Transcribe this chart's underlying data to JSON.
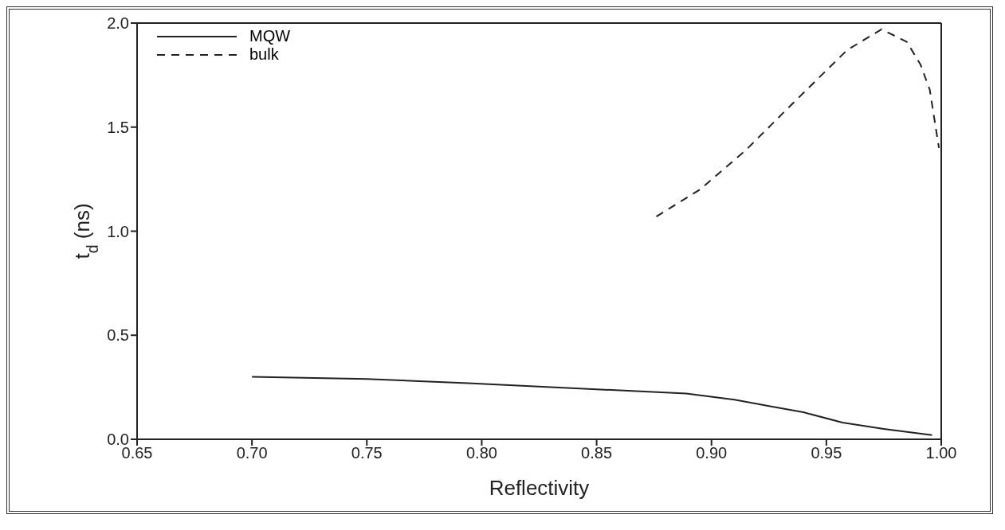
{
  "chart_data": {
    "type": "line",
    "xlabel": "Reflectivity",
    "ylabel": "t$_{d}$ (ns)",
    "xlim": [
      0.65,
      1.0
    ],
    "xticks": [
      {
        "value": 0.65,
        "label": "0.65"
      },
      {
        "value": 0.7,
        "label": "0.70"
      },
      {
        "value": 0.75,
        "label": "0.75"
      },
      {
        "value": 0.8,
        "label": "0.80"
      },
      {
        "value": 0.85,
        "label": "0.85"
      },
      {
        "value": 0.9,
        "label": "0.90"
      },
      {
        "value": 0.95,
        "label": "0.95"
      },
      {
        "value": 1.0,
        "label": "1.00"
      }
    ],
    "ylim": [
      0,
      2.0
    ],
    "yticks": [
      {
        "value": 0,
        "label": "0.0"
      },
      0.5,
      {
        "value": 1,
        "label": "1.0"
      },
      1.5,
      {
        "value": 2,
        "label": "2.0"
      }
    ],
    "legend": "top left",
    "marker": "none",
    "series": [
      {
        "name": "MQW",
        "color": "#222222",
        "line_style": "solid",
        "x": [
          0.7,
          0.75,
          0.794,
          0.85,
          0.889,
          0.91,
          0.925,
          0.94,
          0.957,
          0.975,
          0.996
        ],
        "values": [
          0.3,
          0.29,
          0.27,
          0.24,
          0.22,
          0.19,
          0.16,
          0.13,
          0.08,
          0.05,
          0.02
        ]
      },
      {
        "name": "bulk",
        "color": "#222222",
        "line_style": "dashed",
        "x": [
          0.876,
          0.895,
          0.915,
          0.935,
          0.959,
          0.974,
          0.985,
          0.991,
          0.995,
          0.999
        ],
        "values": [
          1.07,
          1.2,
          1.39,
          1.61,
          1.87,
          1.97,
          1.91,
          1.8,
          1.68,
          1.4
        ]
      }
    ]
  }
}
